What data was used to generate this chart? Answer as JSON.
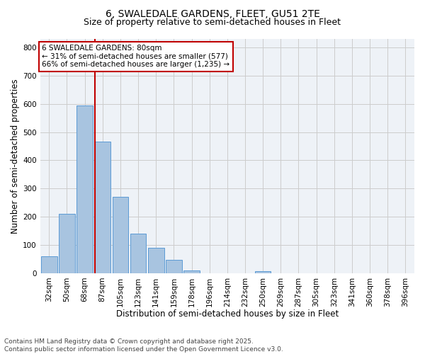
{
  "title_line1": "6, SWALEDALE GARDENS, FLEET, GU51 2TE",
  "title_line2": "Size of property relative to semi-detached houses in Fleet",
  "categories": [
    "32sqm",
    "50sqm",
    "68sqm",
    "87sqm",
    "105sqm",
    "123sqm",
    "141sqm",
    "159sqm",
    "178sqm",
    "196sqm",
    "214sqm",
    "232sqm",
    "250sqm",
    "269sqm",
    "287sqm",
    "305sqm",
    "323sqm",
    "341sqm",
    "360sqm",
    "378sqm",
    "396sqm"
  ],
  "values": [
    60,
    210,
    595,
    465,
    270,
    140,
    90,
    47,
    10,
    0,
    0,
    0,
    7,
    0,
    0,
    0,
    0,
    0,
    0,
    0,
    0
  ],
  "bar_color": "#a8c4e0",
  "bar_edge_color": "#5b9bd5",
  "vline_x_index": 2.57,
  "vline_color": "#c00000",
  "annotation_text": "6 SWALEDALE GARDENS: 80sqm\n← 31% of semi-detached houses are smaller (577)\n66% of semi-detached houses are larger (1,235) →",
  "annotation_box_color": "#c00000",
  "xlabel": "Distribution of semi-detached houses by size in Fleet",
  "ylabel": "Number of semi-detached properties",
  "ylim": [
    0,
    830
  ],
  "yticks": [
    0,
    100,
    200,
    300,
    400,
    500,
    600,
    700,
    800
  ],
  "grid_color": "#cccccc",
  "background_color": "#eef2f7",
  "footer_text": "Contains HM Land Registry data © Crown copyright and database right 2025.\nContains public sector information licensed under the Open Government Licence v3.0.",
  "title_fontsize": 10,
  "subtitle_fontsize": 9,
  "axis_label_fontsize": 8.5,
  "tick_fontsize": 7.5,
  "footer_fontsize": 6.5
}
